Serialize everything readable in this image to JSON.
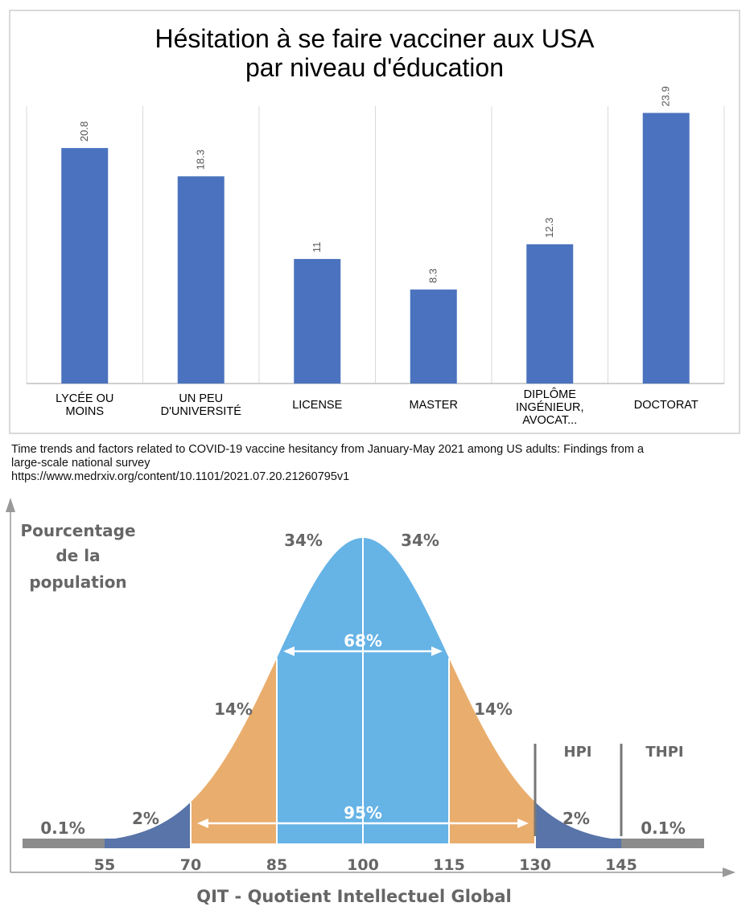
{
  "chart_data": [
    {
      "type": "bar",
      "title_lines": [
        "Hésitation à se faire vacciner aux USA",
        "par niveau d'éducation"
      ],
      "categories": [
        [
          "LYCÉE OU",
          "MOINS"
        ],
        [
          "UN PEU",
          "D'UNIVERSITÉ"
        ],
        [
          "LICENSE"
        ],
        [
          "MASTER"
        ],
        [
          "DIPLÔME",
          "INGÉNIEUR,",
          "AVOCAT..."
        ],
        [
          "DOCTORAT"
        ]
      ],
      "values": [
        20.8,
        18.3,
        11,
        8.3,
        12.3,
        23.9
      ],
      "value_labels": [
        "20.8",
        "18.3",
        "11",
        "8.3",
        "12.3",
        "23.9"
      ],
      "bar_color": "#4a72be",
      "ylim": [
        0,
        24.5
      ],
      "source_lines": [
        "Time trends and factors related to COVID-19 vaccine hesitancy from January-May 2021 among US adults: Findings from a",
        "large-scale national survey",
        "https://www.medrxiv.org/content/10.1101/2021.07.20.21260795v1"
      ]
    },
    {
      "type": "area",
      "subtype": "normal-distribution",
      "ylabel_lines": [
        "Pourcentage",
        "de la",
        "population"
      ],
      "xlabel": "QIT - Quotient Intellectuel Global",
      "mean": 100,
      "sd": 15,
      "x_ticks": [
        55,
        70,
        85,
        100,
        115,
        130,
        145
      ],
      "x_tick_labels": [
        "55",
        "70",
        "85",
        "100",
        "115",
        "130",
        "145"
      ],
      "xlim": [
        40,
        160
      ],
      "regions": [
        {
          "from": 40,
          "to": 55,
          "label": "0.1%",
          "color": "#8c8c8c"
        },
        {
          "from": 55,
          "to": 70,
          "label": "2%",
          "color": "#5874a8"
        },
        {
          "from": 70,
          "to": 85,
          "label": "14%",
          "color": "#e9ad6d"
        },
        {
          "from": 85,
          "to": 100,
          "label": "34%",
          "color": "#66b3e6"
        },
        {
          "from": 100,
          "to": 115,
          "label": "34%",
          "color": "#66b3e6"
        },
        {
          "from": 115,
          "to": 130,
          "label": "14%",
          "color": "#e9ad6d"
        },
        {
          "from": 130,
          "to": 145,
          "label": "2%",
          "color": "#5874a8"
        },
        {
          "from": 145,
          "to": 160,
          "label": "0.1%",
          "color": "#8c8c8c"
        }
      ],
      "spans": [
        {
          "from": 85,
          "to": 115,
          "label": "68%"
        },
        {
          "from": 70,
          "to": 130,
          "label": "95%"
        }
      ],
      "markers": [
        {
          "at": 130,
          "label": "HPI"
        },
        {
          "at": 145,
          "label": "THPI"
        }
      ],
      "text_color": "#666666"
    }
  ]
}
